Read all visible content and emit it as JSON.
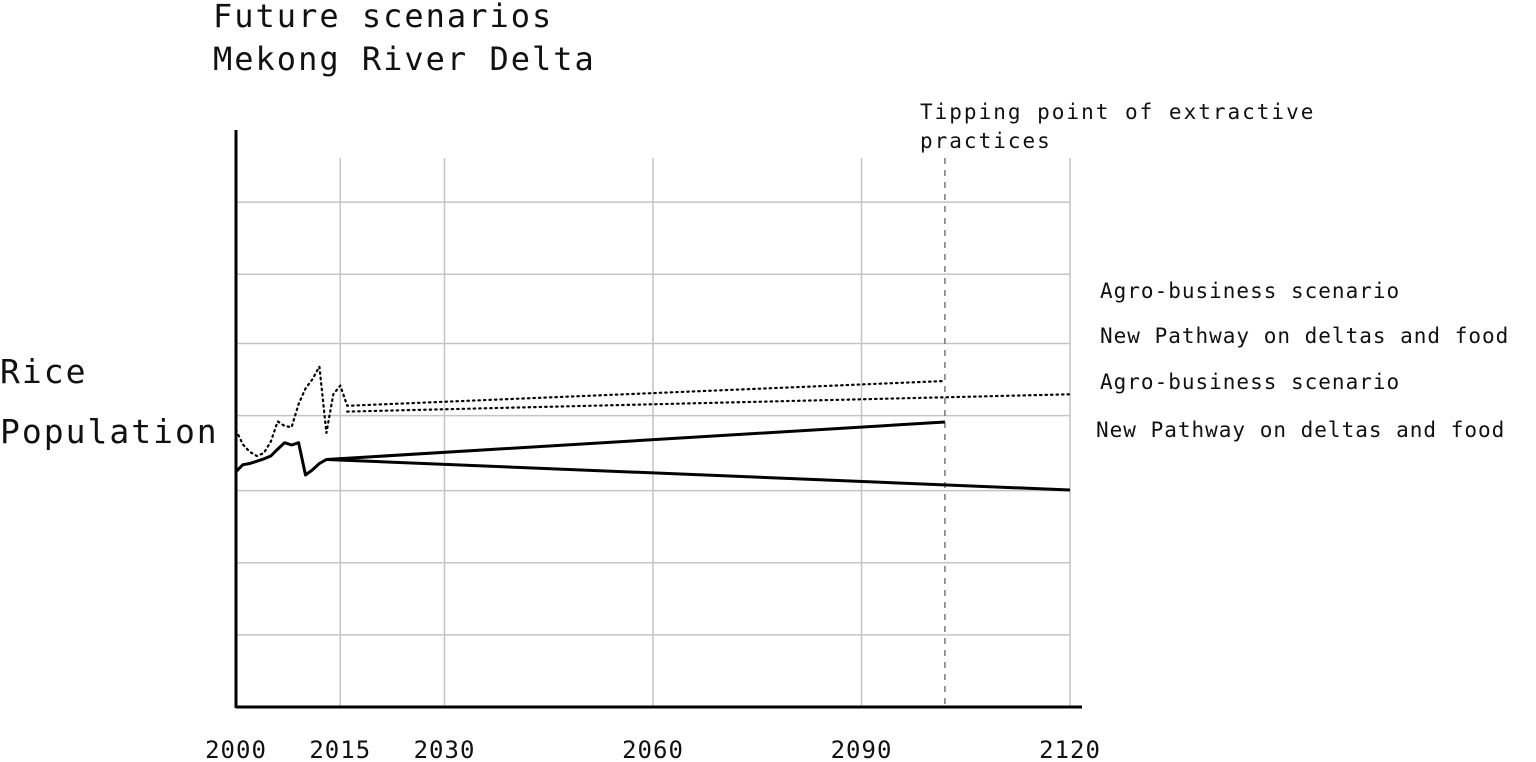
{
  "chart_data": {
    "type": "line",
    "title": [
      "Future scenarios",
      "Mekong River Delta"
    ],
    "ylabels": [
      "Rice",
      "Population"
    ],
    "x_ticks": [
      2000,
      2015,
      2030,
      2060,
      2090,
      2120
    ],
    "xlim": [
      2000,
      2120
    ],
    "ylim": [
      0,
      10
    ],
    "grid": true,
    "annotation": {
      "text": [
        "Tipping point of extractive",
        "practices"
      ],
      "x": 2102
    },
    "series": [
      {
        "name": "Agro-business scenario",
        "group": "Rice",
        "style": "dotted",
        "points": [
          [
            2000,
            4.8
          ],
          [
            2001,
            4.55
          ],
          [
            2002,
            4.42
          ],
          [
            2003,
            4.35
          ],
          [
            2004,
            4.4
          ],
          [
            2005,
            4.6
          ],
          [
            2006,
            4.95
          ],
          [
            2007,
            4.87
          ],
          [
            2008,
            4.85
          ],
          [
            2009,
            5.25
          ],
          [
            2010,
            5.52
          ],
          [
            2011,
            5.68
          ],
          [
            2012,
            5.9
          ],
          [
            2013,
            4.75
          ],
          [
            2014,
            5.42
          ],
          [
            2015,
            5.57
          ],
          [
            2016,
            5.22
          ],
          [
            2102,
            5.65
          ]
        ]
      },
      {
        "name": "New Pathway on deltas and food",
        "group": "Rice",
        "style": "dotted",
        "points": [
          [
            2016,
            5.12
          ],
          [
            2120,
            5.42
          ]
        ]
      },
      {
        "name": "Agro-business scenario",
        "group": "Population",
        "style": "solid",
        "points": [
          [
            2000,
            4.08
          ],
          [
            2001,
            4.2
          ],
          [
            2002,
            4.22
          ],
          [
            2003,
            4.26
          ],
          [
            2004,
            4.3
          ],
          [
            2005,
            4.35
          ],
          [
            2006,
            4.47
          ],
          [
            2007,
            4.58
          ],
          [
            2008,
            4.54
          ],
          [
            2009,
            4.58
          ],
          [
            2010,
            4.02
          ],
          [
            2011,
            4.11
          ],
          [
            2012,
            4.22
          ],
          [
            2013,
            4.29
          ],
          [
            2102,
            4.94
          ]
        ]
      },
      {
        "name": "New Pathway on deltas and food",
        "group": "Population",
        "style": "solid",
        "points": [
          [
            2013,
            4.29
          ],
          [
            2120,
            3.76
          ]
        ]
      }
    ],
    "legend": [
      "Agro-business scenario",
      "New Pathway on deltas and food",
      "Agro-business scenario",
      "New Pathway on deltas and food"
    ]
  }
}
